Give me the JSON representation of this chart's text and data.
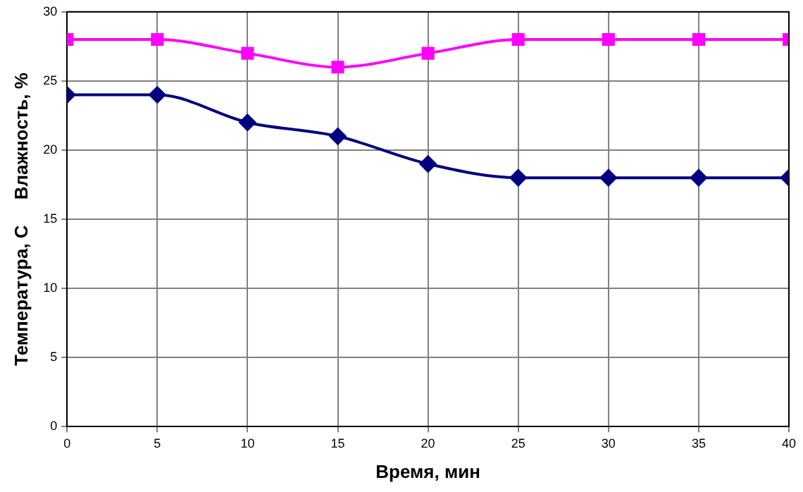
{
  "chart_data": {
    "type": "line",
    "xlabel": "Время, мин",
    "ylabel": "Температура, С     Влажность, %",
    "x": [
      0,
      5,
      10,
      15,
      20,
      25,
      30,
      35,
      40
    ],
    "series": [
      {
        "color": "#ff00ff",
        "marker": "square",
        "values": [
          28,
          28,
          27,
          26,
          27,
          28,
          28,
          28,
          28
        ]
      },
      {
        "color": "#000080",
        "marker": "diamond",
        "values": [
          24,
          24,
          22,
          21,
          19,
          18,
          18,
          18,
          18
        ]
      }
    ],
    "xlim": [
      0,
      40
    ],
    "xticks": [
      0,
      5,
      10,
      15,
      20,
      25,
      30,
      35,
      40
    ],
    "ylim": [
      0,
      30
    ],
    "yticks": [
      0,
      5,
      10,
      15,
      20,
      25,
      30
    ],
    "grid": true,
    "legend": false,
    "line_style": "solid"
  }
}
